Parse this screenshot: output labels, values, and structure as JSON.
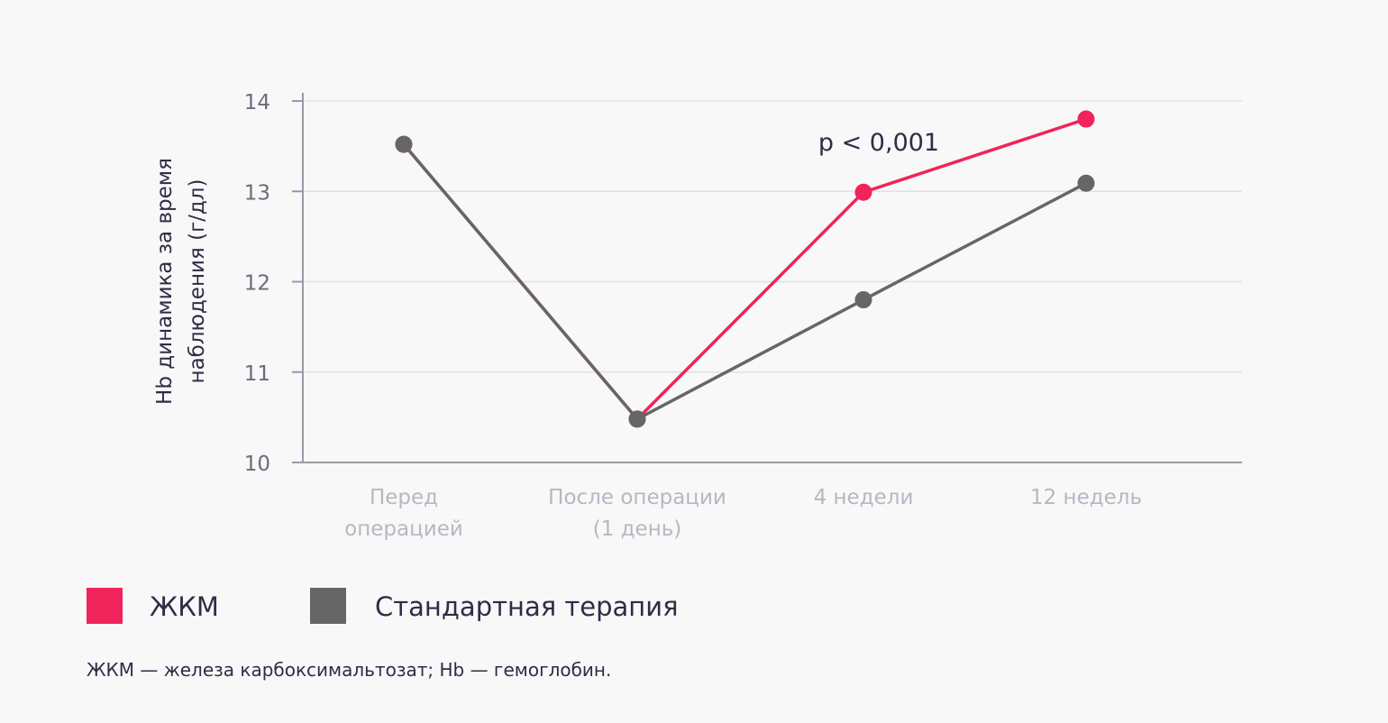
{
  "chart_data": {
    "type": "line",
    "categories": [
      [
        "Перед",
        "операцией"
      ],
      [
        "После операции",
        "(1 день)"
      ],
      [
        "4 недели"
      ],
      [
        "12 недель"
      ]
    ],
    "ylabel": [
      "Hb динамика за время",
      "наблюдения (г/дл)"
    ],
    "ylim": [
      10,
      14
    ],
    "yticks": [
      10,
      11,
      12,
      13,
      14
    ],
    "grid": true,
    "series": [
      {
        "name": "ЖКМ",
        "color": "#f0245a",
        "values": [
          13.52,
          10.48,
          12.99,
          13.8
        ]
      },
      {
        "name": "Стандартная терапия",
        "color": "#666666",
        "values": [
          13.52,
          10.48,
          11.8,
          13.09
        ]
      }
    ],
    "annotation": "p < 0,001"
  },
  "legend": {
    "items": [
      {
        "label": "ЖКМ",
        "color": "#f0245a"
      },
      {
        "label": "Стандартная терапия",
        "color": "#666666"
      }
    ]
  },
  "footnote": "ЖКМ — железа карбоксимальтозат; Hb — гемоглобин."
}
